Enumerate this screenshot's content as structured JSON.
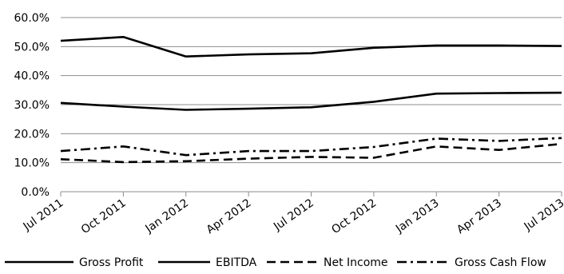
{
  "chart_data": {
    "type": "line",
    "title": "",
    "xlabel": "",
    "ylabel": "",
    "categories": [
      "Jul 2011",
      "Oct 2011",
      "Jan 2012",
      "Apr 2012",
      "Jul 2012",
      "Oct 2012",
      "Jan 2013",
      "Apr 2013",
      "Jul 2013"
    ],
    "y_tick_labels": [
      "0.0%",
      "10.0%",
      "20.0%",
      "30.0%",
      "40.0%",
      "50.0%",
      "60.0%"
    ],
    "ylim": [
      0,
      60
    ],
    "y_unit": "percent",
    "grid": "horizontal",
    "legend_position": "bottom",
    "series": [
      {
        "name": "Gross Profit",
        "line_style": "solid",
        "color": "#000000",
        "values": [
          52.0,
          53.3,
          46.6,
          47.3,
          47.7,
          49.6,
          50.4,
          50.4,
          50.2
        ]
      },
      {
        "name": "EBITDA",
        "line_style": "solid",
        "color": "#000000",
        "values": [
          30.6,
          29.3,
          28.2,
          28.6,
          29.1,
          31.0,
          33.8,
          34.0,
          34.1
        ]
      },
      {
        "name": "Net Income",
        "line_style": "dashed",
        "color": "#000000",
        "values": [
          11.2,
          10.2,
          10.5,
          11.4,
          12.0,
          11.7,
          15.6,
          14.4,
          16.5
        ]
      },
      {
        "name": "Gross Cash Flow",
        "line_style": "dash-dot",
        "color": "#000000",
        "values": [
          14.0,
          15.6,
          12.6,
          14.0,
          14.0,
          15.4,
          18.3,
          17.5,
          18.5
        ]
      }
    ]
  }
}
